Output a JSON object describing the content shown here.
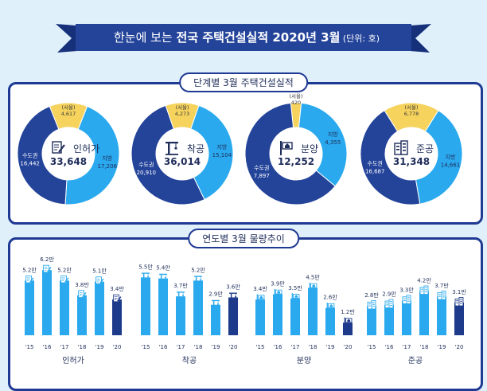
{
  "title": {
    "pre": "한눈에 보는 ",
    "main": "전국 주택건설실적 2020년 3월",
    "unit": " (단위: 호)"
  },
  "section_top_label": "단계별 3월 주택건설실적",
  "section_bottom_label": "연도별 3월 물량추이",
  "colors": {
    "navy": "#1f3a93",
    "mid": "#24449a",
    "cyan": "#2aa9ee",
    "yellow": "#f6d35d",
    "dark_bar": "#1e3a8a"
  },
  "chart_data": [
    {
      "type": "pie",
      "title": "인허가",
      "total": "33,648",
      "slices": [
        {
          "label": "(서울)",
          "value_text": "4,617",
          "value": 4617
        },
        {
          "label": "지방",
          "value_text": "17,206",
          "value": 17206
        },
        {
          "label": "수도권",
          "value_text": "16,442",
          "value": 16442
        }
      ]
    },
    {
      "type": "pie",
      "title": "착공",
      "total": "36,014",
      "slices": [
        {
          "label": "(서울)",
          "value_text": "4,273",
          "value": 4273
        },
        {
          "label": "지방",
          "value_text": "15,104",
          "value": 15104
        },
        {
          "label": "수도권",
          "value_text": "20,910",
          "value": 20910
        }
      ]
    },
    {
      "type": "pie",
      "title": "분양",
      "total": "12,252",
      "slices": [
        {
          "label": "(서울)",
          "value_text": "420",
          "value": 420
        },
        {
          "label": "지방",
          "value_text": "4,355",
          "value": 4355
        },
        {
          "label": "수도권",
          "value_text": "7,897",
          "value": 7897
        }
      ]
    },
    {
      "type": "pie",
      "title": "준공",
      "total": "31,348",
      "slices": [
        {
          "label": "(서울)",
          "value_text": "6,778",
          "value": 6778
        },
        {
          "label": "지방",
          "value_text": "14,661",
          "value": 14661
        },
        {
          "label": "수도권",
          "value_text": "16,687",
          "value": 16687
        }
      ]
    },
    {
      "type": "bar",
      "title": "인허가",
      "categories": [
        "'15",
        "'16",
        "'17",
        "'18",
        "'19",
        "'20"
      ],
      "values": [
        5.2,
        6.2,
        5.2,
        3.8,
        5.1,
        3.4
      ],
      "labels": [
        "5.2만",
        "6.2만",
        "5.2만",
        "3.8만",
        "5.1만",
        "3.4만"
      ],
      "icon": "permit-icon"
    },
    {
      "type": "bar",
      "title": "착공",
      "categories": [
        "'15",
        "'16",
        "'17",
        "'18",
        "'19",
        "'20"
      ],
      "values": [
        5.5,
        5.4,
        3.7,
        5.2,
        2.9,
        3.6
      ],
      "labels": [
        "5.5만",
        "5.4만",
        "3.7만",
        "5.2만",
        "2.9만",
        "3.6만"
      ],
      "icon": "crane-icon"
    },
    {
      "type": "bar",
      "title": "분양",
      "categories": [
        "'15",
        "'16",
        "'17",
        "'18",
        "'19",
        "'20"
      ],
      "values": [
        3.4,
        3.9,
        3.5,
        4.5,
        2.6,
        1.2
      ],
      "labels": [
        "3.4만",
        "3.9만",
        "3.5만",
        "4.5만",
        "2.6만",
        "1.2만"
      ],
      "icon": "sale-icon"
    },
    {
      "type": "bar",
      "title": "준공",
      "categories": [
        "'15",
        "'16",
        "'17",
        "'18",
        "'19",
        "'20"
      ],
      "values": [
        2.8,
        2.9,
        3.3,
        4.2,
        3.7,
        3.1
      ],
      "labels": [
        "2.8만",
        "2.9만",
        "3.3만",
        "4.2만",
        "3.7만",
        "3.1만"
      ],
      "icon": "building-icon"
    }
  ]
}
